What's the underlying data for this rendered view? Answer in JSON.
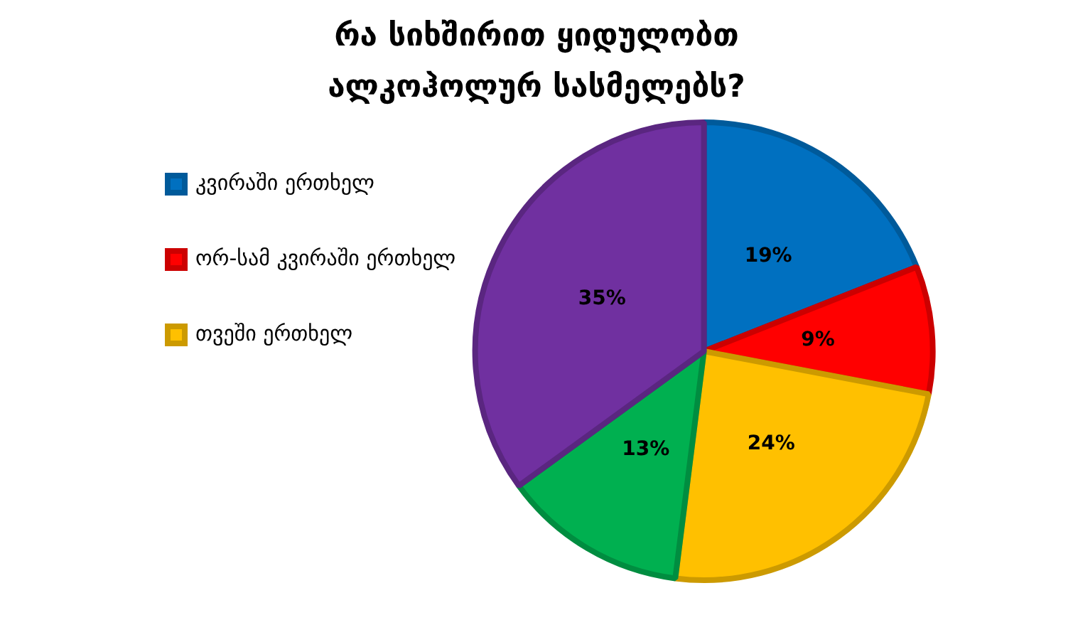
{
  "chart_data": {
    "type": "pie",
    "title": "რა სიხშირით ყიდულობთ ალკოჰოლურ სასმელებს?",
    "categories": [
      "კვირაში ერთხელ",
      "ორ-სამ კვირაში ერთხელ",
      "თვეში ერთხელ",
      null,
      null
    ],
    "values": [
      19,
      9,
      24,
      13,
      35
    ],
    "colors": [
      "#0070c0",
      "#ff0000",
      "#ffc000",
      "#00b050",
      "#7030a0"
    ],
    "value_labels": [
      "19%",
      "9%",
      "24%",
      "13%",
      "35%"
    ],
    "legend": "top left"
  }
}
